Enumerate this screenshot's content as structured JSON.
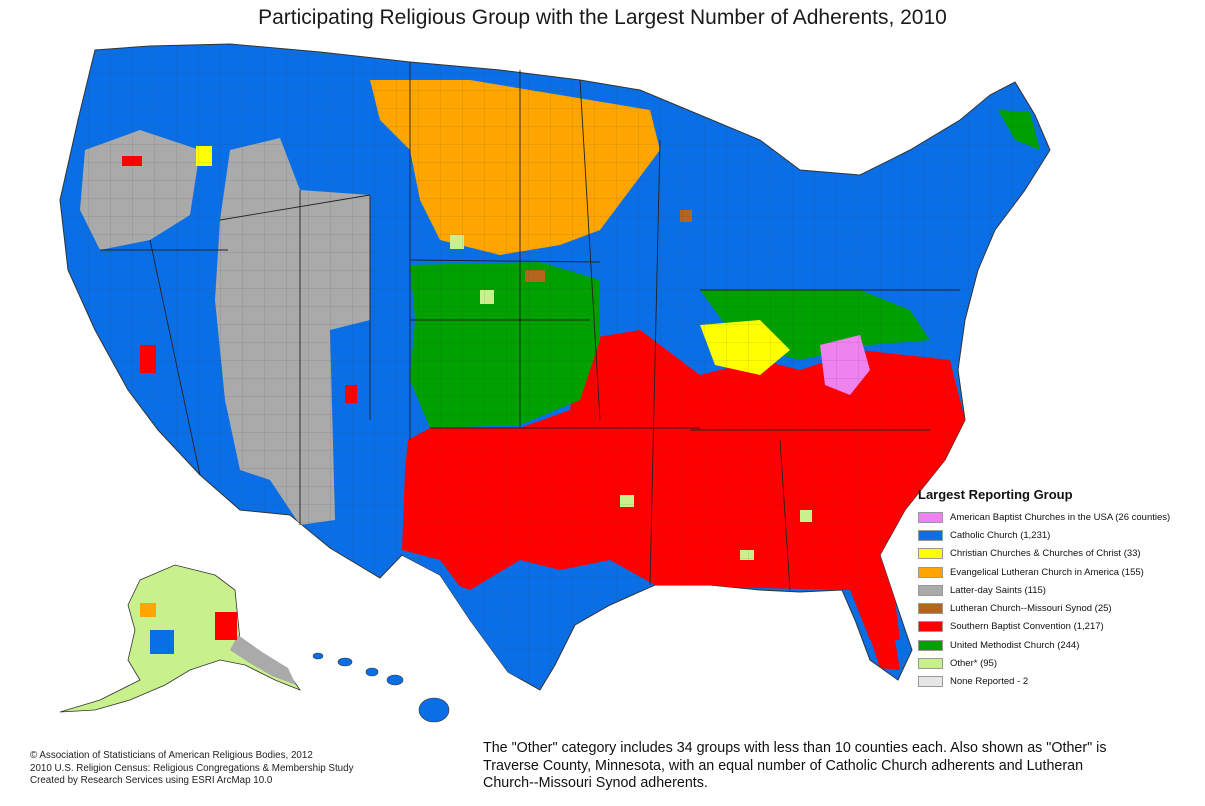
{
  "title": "Participating Religious Group with the Largest Number of Adherents, 2010",
  "legend": {
    "title": "Largest Reporting Group",
    "items": [
      {
        "label": "American Baptist Churches in the USA (26 counties)",
        "color": "#ee82ee"
      },
      {
        "label": "Catholic Church (1,231)",
        "color": "#0a6fe6"
      },
      {
        "label": "Christian Churches & Churches of Christ (33)",
        "color": "#ffff00"
      },
      {
        "label": "Evangelical Lutheran Church in America (155)",
        "color": "#ffa500"
      },
      {
        "label": "Latter-day Saints (115)",
        "color": "#aaaaaa"
      },
      {
        "label": "Lutheran Church--Missouri Synod (25)",
        "color": "#b5651d"
      },
      {
        "label": "Southern Baptist Convention (1,217)",
        "color": "#ff0000"
      },
      {
        "label": "United Methodist Church (244)",
        "color": "#00a000"
      },
      {
        "label": "Other* (95)",
        "color": "#c8f08c"
      },
      {
        "label": "None Reported - 2",
        "color": "#e6e6e6"
      }
    ]
  },
  "credits": [
    "© Association of Statisticians of American Religious Bodies, 2012",
    "2010 U.S. Religion Census: Religious Congregations & Membership Study",
    "Created by Research Services using ESRI ArcMap 10.0"
  ],
  "note": "The \"Other\" category includes 34 groups with less than 10 counties each. Also shown as \"Other\" is Traverse County, Minnesota, with an equal number of Catholic Church adherents and Lutheran Church--Missouri Synod adherents.",
  "colors": {
    "catholic": "#0a6fe6",
    "baptist": "#ff0000",
    "lds": "#aaaaaa",
    "elca": "#ffa500",
    "methodist": "#00a000",
    "christian": "#ffff00",
    "amBaptist": "#ee82ee",
    "lcms": "#b5651d",
    "other": "#c8f08c"
  }
}
